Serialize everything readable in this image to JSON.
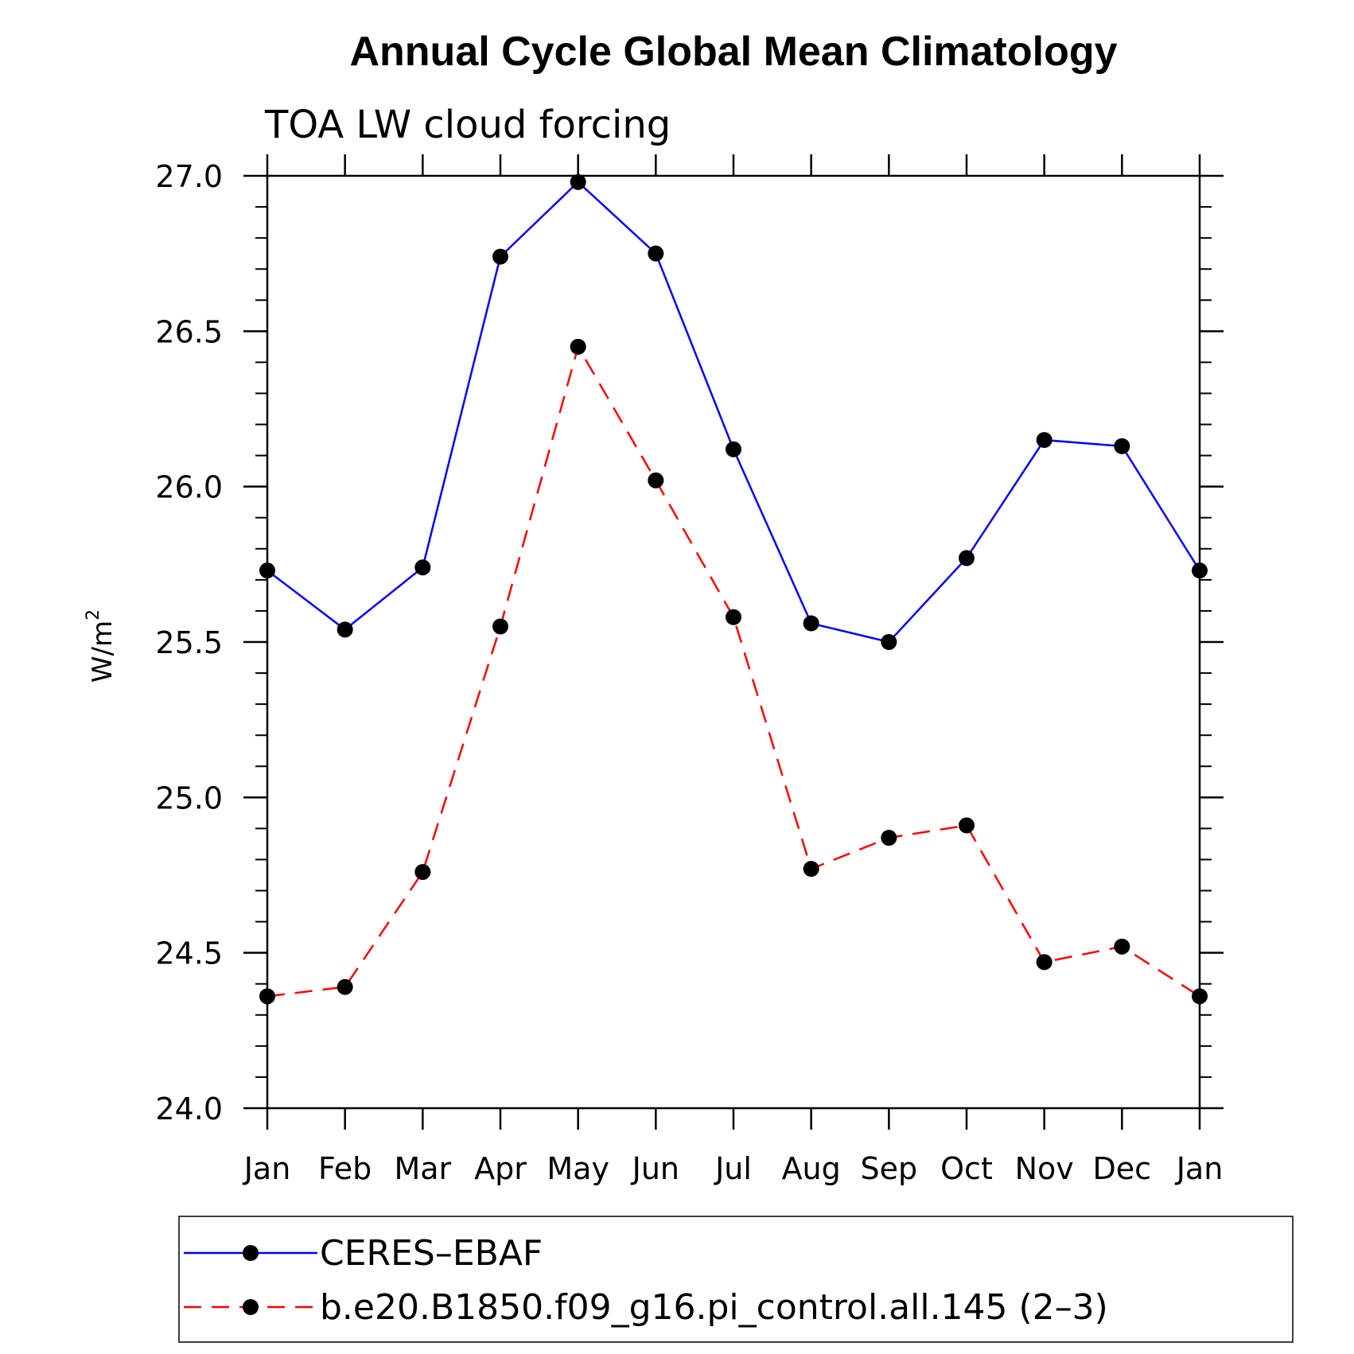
{
  "chart_data": {
    "type": "line",
    "title": "Annual Cycle Global Mean Climatology",
    "subtitle": "TOA LW cloud forcing",
    "ylabel": "W/m",
    "ylabel_superscript": "2",
    "xlabel": "",
    "categories": [
      "Jan",
      "Feb",
      "Mar",
      "Apr",
      "May",
      "Jun",
      "Jul",
      "Aug",
      "Sep",
      "Oct",
      "Nov",
      "Dec",
      "Jan"
    ],
    "ylim": [
      24.0,
      27.0
    ],
    "yticks": [
      "24.0",
      "24.5",
      "25.0",
      "25.5",
      "26.0",
      "26.5",
      "27.0"
    ],
    "grid": false,
    "legend_position": "bottom",
    "series": [
      {
        "name": "CERES–EBAF",
        "color": "#0000ff",
        "line_style": "solid",
        "marker": "filled-circle",
        "values": [
          25.73,
          25.54,
          25.74,
          26.74,
          26.98,
          26.75,
          26.12,
          25.56,
          25.5,
          25.77,
          26.15,
          26.13,
          25.73
        ]
      },
      {
        "name": "b.e20.B1850.f09_g16.pi_control.all.145 (2–3)",
        "color": "#ff0000",
        "line_style": "dashed",
        "marker": "filled-circle",
        "values": [
          24.36,
          24.39,
          24.76,
          25.55,
          26.45,
          26.02,
          25.58,
          24.77,
          24.87,
          24.91,
          24.47,
          24.52,
          24.36
        ]
      }
    ]
  }
}
